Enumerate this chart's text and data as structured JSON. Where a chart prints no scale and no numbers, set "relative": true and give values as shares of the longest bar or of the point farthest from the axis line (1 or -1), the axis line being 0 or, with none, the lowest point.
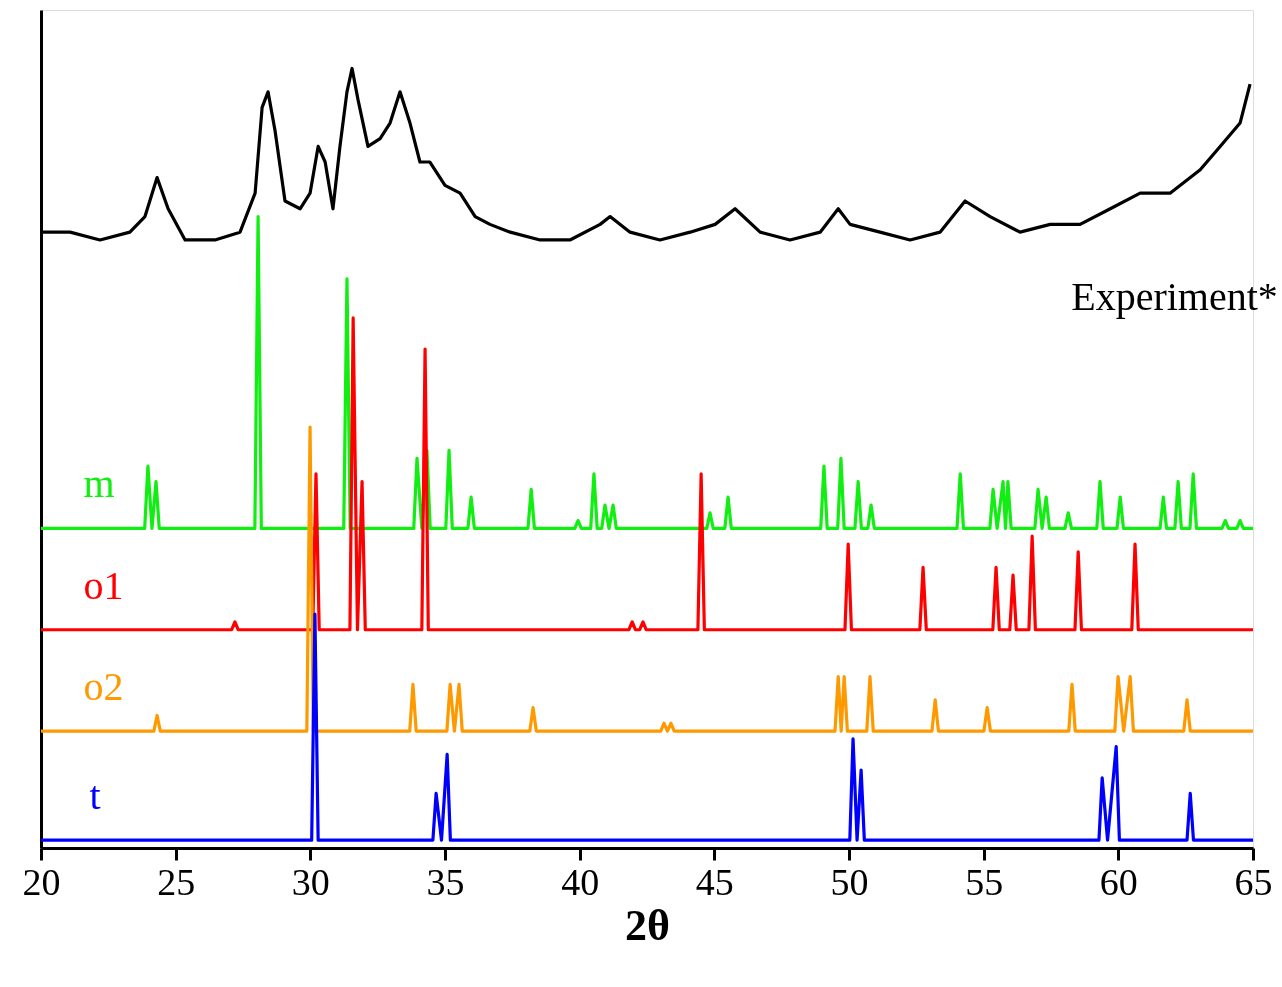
{
  "chart_data": {
    "type": "line",
    "relative": true,
    "xlabel": "2θ",
    "xlim": [
      20,
      65
    ],
    "xticks": [
      20,
      25,
      30,
      35,
      40,
      45,
      50,
      55,
      60,
      65
    ],
    "series": [
      {
        "name": "Experiment*",
        "color": "#000000",
        "x": [
          20.0,
          21.08,
          22.19,
          23.3,
          23.86,
          24.31,
          24.72,
          25.35,
          26.46,
          27.39,
          27.95,
          28.21,
          28.43,
          28.69,
          29.06,
          29.62,
          29.99,
          30.29,
          30.55,
          30.84,
          31.1,
          31.36,
          31.55,
          31.77,
          32.14,
          32.59,
          32.96,
          33.33,
          33.7,
          34.07,
          34.44,
          35.0,
          35.56,
          36.12,
          36.67,
          37.42,
          38.53,
          39.64,
          40.76,
          41.13,
          41.87,
          42.98,
          44.1,
          45.03,
          45.77,
          46.7,
          47.81,
          48.93,
          49.6,
          50.04,
          51.15,
          52.27,
          53.38,
          54.31,
          55.24,
          56.35,
          57.47,
          58.58,
          59.7,
          60.81,
          61.92,
          63.04,
          63.78,
          64.52,
          64.89
        ],
        "values": [
          0.79,
          0.79,
          0.78,
          0.79,
          0.81,
          0.86,
          0.82,
          0.78,
          0.78,
          0.79,
          0.84,
          0.95,
          0.97,
          0.92,
          0.83,
          0.82,
          0.84,
          0.9,
          0.88,
          0.82,
          0.9,
          0.97,
          1.0,
          0.96,
          0.9,
          0.91,
          0.93,
          0.97,
          0.93,
          0.88,
          0.88,
          0.85,
          0.84,
          0.81,
          0.8,
          0.79,
          0.78,
          0.78,
          0.8,
          0.81,
          0.79,
          0.78,
          0.79,
          0.8,
          0.82,
          0.79,
          0.78,
          0.79,
          0.82,
          0.8,
          0.79,
          0.78,
          0.79,
          0.83,
          0.81,
          0.79,
          0.8,
          0.8,
          0.82,
          0.84,
          0.84,
          0.87,
          0.9,
          0.93,
          0.98
        ]
      },
      {
        "name": "m",
        "color": "#11ee11",
        "x": [
          20,
          23.85,
          23.97,
          24.12,
          24.27,
          24.39,
          27.94,
          28.06,
          28.18,
          31.24,
          31.36,
          31.48,
          33.84,
          33.96,
          34.14,
          34.33,
          34.45,
          35.03,
          35.15,
          35.27,
          35.85,
          35.97,
          36.09,
          38.08,
          38.2,
          38.32,
          39.82,
          39.94,
          40.06,
          40.41,
          40.53,
          40.65,
          40.82,
          40.94,
          41.09,
          41.24,
          41.36,
          44.72,
          44.84,
          44.96,
          45.39,
          45.51,
          45.63,
          48.95,
          49.07,
          49.19,
          49.58,
          49.7,
          49.82,
          50.22,
          50.34,
          50.46,
          50.7,
          50.82,
          50.94,
          54.01,
          54.13,
          54.25,
          55.23,
          55.35,
          55.5,
          55.72,
          55.81,
          55.9,
          56.02,
          56.9,
          57.02,
          57.17,
          57.32,
          57.44,
          58.02,
          58.14,
          58.26,
          59.2,
          59.32,
          59.44,
          59.95,
          60.07,
          60.19,
          61.55,
          61.67,
          61.79,
          62.1,
          62.22,
          62.34,
          62.66,
          62.78,
          62.9,
          63.85,
          63.97,
          64.09,
          64.4,
          64.52,
          64.64,
          65
        ],
        "values": [
          0.41,
          0.41,
          0.49,
          0.41,
          0.47,
          0.41,
          0.41,
          0.81,
          0.41,
          0.41,
          0.73,
          0.41,
          0.41,
          0.5,
          0.41,
          0.51,
          0.41,
          0.41,
          0.51,
          0.41,
          0.41,
          0.45,
          0.41,
          0.41,
          0.46,
          0.41,
          0.41,
          0.42,
          0.41,
          0.41,
          0.48,
          0.41,
          0.41,
          0.44,
          0.41,
          0.44,
          0.41,
          0.41,
          0.43,
          0.41,
          0.41,
          0.45,
          0.41,
          0.41,
          0.49,
          0.41,
          0.41,
          0.5,
          0.41,
          0.41,
          0.47,
          0.41,
          0.41,
          0.44,
          0.41,
          0.41,
          0.48,
          0.41,
          0.41,
          0.46,
          0.41,
          0.47,
          0.41,
          0.47,
          0.41,
          0.41,
          0.46,
          0.41,
          0.45,
          0.41,
          0.41,
          0.43,
          0.41,
          0.41,
          0.47,
          0.41,
          0.41,
          0.45,
          0.41,
          0.41,
          0.45,
          0.41,
          0.41,
          0.47,
          0.41,
          0.41,
          0.48,
          0.41,
          0.41,
          0.42,
          0.41,
          0.41,
          0.42,
          0.41,
          0.41
        ]
      },
      {
        "name": "o1",
        "color": "#ff0000",
        "x": [
          20,
          27.08,
          27.2,
          27.32,
          30.09,
          30.21,
          30.33,
          31.47,
          31.59,
          31.75,
          31.92,
          32.04,
          34.14,
          34.26,
          34.38,
          41.83,
          41.95,
          42.07,
          42.23,
          42.35,
          42.47,
          44.39,
          44.51,
          44.63,
          49.85,
          49.97,
          50.09,
          52.63,
          52.75,
          52.87,
          55.34,
          55.46,
          55.58,
          55.97,
          56.09,
          56.21,
          56.68,
          56.8,
          56.92,
          58.39,
          58.51,
          58.63,
          60.5,
          60.62,
          60.74,
          65
        ],
        "values": [
          0.28,
          0.28,
          0.29,
          0.28,
          0.28,
          0.48,
          0.28,
          0.28,
          0.68,
          0.28,
          0.47,
          0.28,
          0.28,
          0.64,
          0.28,
          0.28,
          0.29,
          0.28,
          0.28,
          0.29,
          0.28,
          0.28,
          0.48,
          0.28,
          0.28,
          0.39,
          0.28,
          0.28,
          0.36,
          0.28,
          0.28,
          0.36,
          0.28,
          0.28,
          0.35,
          0.28,
          0.28,
          0.4,
          0.28,
          0.28,
          0.38,
          0.28,
          0.28,
          0.39,
          0.28,
          0.28
        ]
      },
      {
        "name": "o2",
        "color": "#ff9900",
        "x": [
          20,
          24.19,
          24.31,
          24.43,
          29.87,
          29.99,
          30.11,
          33.69,
          33.81,
          33.93,
          35.07,
          35.19,
          35.35,
          35.52,
          35.64,
          38.15,
          38.27,
          38.39,
          43.01,
          43.13,
          43.26,
          43.39,
          43.51,
          49.48,
          49.6,
          49.71,
          49.82,
          49.94,
          50.66,
          50.78,
          50.9,
          53.08,
          53.2,
          53.32,
          55.01,
          55.13,
          55.25,
          58.16,
          58.28,
          58.4,
          59.87,
          59.99,
          60.2,
          60.44,
          60.56,
          62.43,
          62.55,
          62.67,
          65
        ],
        "values": [
          0.15,
          0.15,
          0.17,
          0.15,
          0.15,
          0.54,
          0.15,
          0.15,
          0.21,
          0.15,
          0.15,
          0.21,
          0.15,
          0.21,
          0.15,
          0.15,
          0.18,
          0.15,
          0.15,
          0.16,
          0.15,
          0.16,
          0.15,
          0.15,
          0.22,
          0.15,
          0.22,
          0.15,
          0.15,
          0.22,
          0.15,
          0.15,
          0.19,
          0.15,
          0.15,
          0.18,
          0.15,
          0.15,
          0.21,
          0.15,
          0.15,
          0.22,
          0.15,
          0.22,
          0.15,
          0.15,
          0.19,
          0.15,
          0.15
        ]
      },
      {
        "name": "t",
        "color": "#0000ff",
        "x": [
          20,
          30.05,
          30.17,
          30.29,
          34.55,
          34.67,
          34.87,
          35.08,
          35.2,
          50.03,
          50.15,
          50.3,
          50.45,
          50.57,
          59.28,
          59.4,
          59.6,
          59.92,
          60.04,
          62.55,
          62.67,
          62.79,
          65
        ],
        "values": [
          0.01,
          0.01,
          0.3,
          0.01,
          0.01,
          0.07,
          0.01,
          0.12,
          0.01,
          0.01,
          0.14,
          0.01,
          0.1,
          0.01,
          0.01,
          0.09,
          0.01,
          0.13,
          0.01,
          0.01,
          0.07,
          0.01,
          0.01
        ]
      }
    ]
  }
}
